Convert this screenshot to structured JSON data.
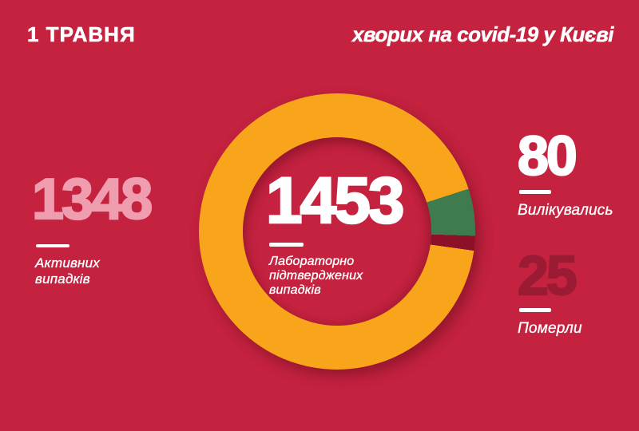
{
  "header": {
    "date": "1 ТРАВНЯ",
    "title": "хворих на covid-19 у Києві"
  },
  "stats": {
    "active": {
      "value": "1348",
      "label_lines": [
        "Активних",
        "випадків"
      ]
    },
    "confirmed": {
      "value": "1453",
      "label_lines": [
        "Лабораторно",
        "підтверджених",
        "випадків"
      ]
    },
    "recovered": {
      "value": "80",
      "label": "Вилікувались"
    },
    "deaths": {
      "value": "25",
      "label": "Померли"
    }
  },
  "chart_data": {
    "type": "pie",
    "donut": true,
    "center_value": 1453,
    "center_label": "Лабораторно підтверджених випадків",
    "total": 1453,
    "segments": [
      {
        "name": "Вилікувались",
        "value": 80,
        "color": "#3E7B4F"
      },
      {
        "name": "Померли",
        "value": 25,
        "color": "#8C1128"
      },
      {
        "name": "Активних випадків",
        "value": 1348,
        "color": "#F9A51C"
      }
    ],
    "start_angle_deg": 72,
    "legend_position": "none",
    "grid": false
  },
  "palette": {
    "background": "#C4223F",
    "text": "#FFFFFF",
    "accent_pink": "#F09DB0",
    "accent_maroon": "#9A1B33",
    "ring_orange": "#F9A51C",
    "ring_green": "#3E7B4F",
    "ring_maroon": "#8C1128"
  }
}
